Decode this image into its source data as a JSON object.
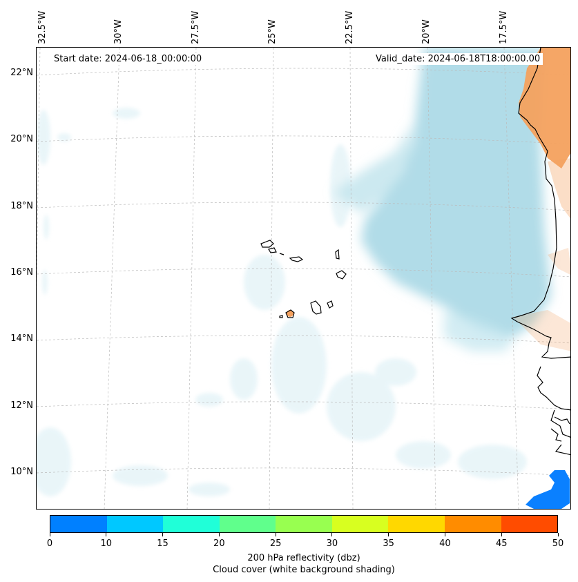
{
  "map": {
    "start_date_label": "Start date: 2024-06-18_00:00:00",
    "valid_date_label": "Valid_date: 2024-06-18T18:00:00.00",
    "longitude_labels": [
      "32.5°W",
      "30°W",
      "27.5°W",
      "25°W",
      "22.5°W",
      "20°W",
      "17.5°W"
    ],
    "latitude_labels": [
      "22°N",
      "20°N",
      "18°N",
      "16°N",
      "14°N",
      "12°N",
      "10°N"
    ],
    "cloud_color": "#a8d8e6",
    "land_reflectivity_color": "#f4a15e",
    "precip_color": "#0a80ff"
  },
  "colorbar": {
    "ticks": [
      "0",
      "10",
      "15",
      "20",
      "25",
      "30",
      "35",
      "40",
      "45",
      "50"
    ],
    "colors": [
      "#0080ff",
      "#00c8ff",
      "#20ffd8",
      "#60ff8c",
      "#98ff50",
      "#d8ff20",
      "#ffd800",
      "#ff8c00",
      "#ff4c00"
    ],
    "title_line1": "200 hPa reflectivity (dbz)",
    "title_line2": "Cloud cover (white background shading)"
  }
}
